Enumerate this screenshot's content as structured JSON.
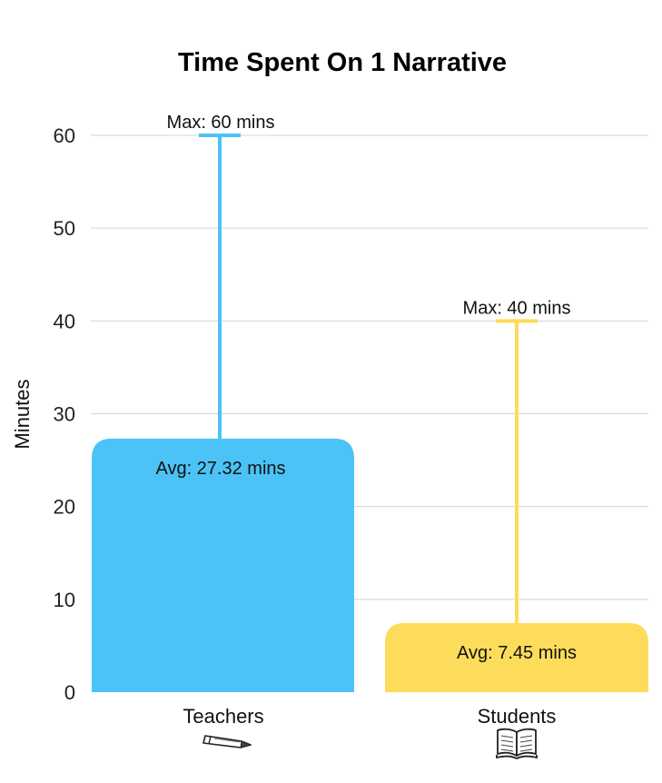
{
  "chart_data": {
    "type": "bar",
    "title": "Time Spent On 1 Narrative",
    "xlabel": "",
    "ylabel": "Minutes",
    "ylim": [
      0,
      60
    ],
    "yticks": [
      0,
      10,
      20,
      30,
      40,
      50,
      60
    ],
    "grid": true,
    "categories": [
      "Teachers",
      "Students"
    ],
    "series": [
      {
        "stat": "average",
        "values": [
          27.32,
          7.45
        ]
      },
      {
        "stat": "max",
        "values": [
          60,
          40
        ]
      }
    ],
    "bar_labels": [
      "Avg: 27.32 mins",
      "Avg: 7.45 mins"
    ],
    "max_labels": [
      "Max: 60 mins",
      "Max: 40 mins"
    ],
    "colors": [
      "#4cc3f7",
      "#fddc5c"
    ],
    "category_icons": [
      "pencil-icon",
      "open-book-icon"
    ]
  }
}
